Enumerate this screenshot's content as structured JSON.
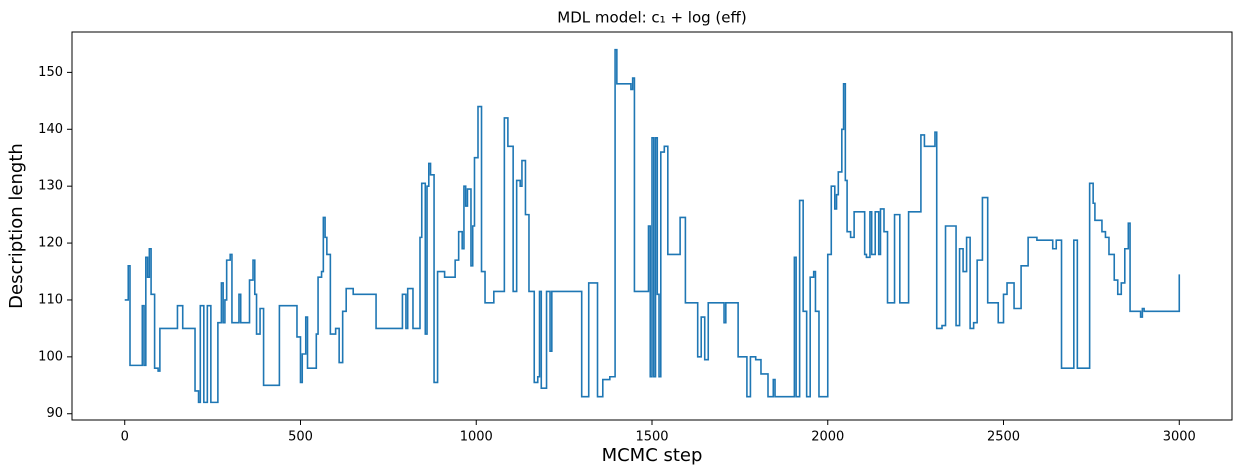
{
  "chart_data": {
    "type": "line",
    "drawstyle": "steps-post",
    "title": "MDL model: c₁ + log (eff)",
    "x_label": "MCMC step",
    "y_label": "Description length",
    "xlim": [
      -150,
      3150
    ],
    "ylim": [
      88.9,
      157.1
    ],
    "xticks": [
      0,
      500,
      1000,
      1500,
      2000,
      2500,
      3000
    ],
    "yticks": [
      90,
      100,
      110,
      120,
      130,
      140,
      150
    ],
    "grid": false,
    "series": [
      {
        "name": "description length",
        "color": "#1f77b4",
        "x": [
          0,
          10,
          15,
          50,
          55,
          60,
          65,
          70,
          75,
          85,
          95,
          100,
          145,
          150,
          165,
          190,
          200,
          210,
          215,
          225,
          235,
          245,
          265,
          275,
          280,
          285,
          290,
          300,
          305,
          325,
          330,
          355,
          365,
          370,
          375,
          385,
          395,
          430,
          440,
          480,
          490,
          500,
          505,
          515,
          520,
          545,
          550,
          560,
          565,
          570,
          575,
          585,
          600,
          610,
          620,
          630,
          650,
          700,
          715,
          785,
          790,
          800,
          805,
          820,
          840,
          845,
          855,
          860,
          865,
          870,
          880,
          890,
          910,
          940,
          950,
          960,
          965,
          970,
          975,
          985,
          990,
          995,
          1005,
          1015,
          1025,
          1050,
          1080,
          1090,
          1105,
          1115,
          1125,
          1130,
          1140,
          1150,
          1165,
          1175,
          1180,
          1185,
          1200,
          1210,
          1215,
          1300,
          1320,
          1345,
          1360,
          1380,
          1395,
          1400,
          1440,
          1445,
          1450,
          1480,
          1490,
          1495,
          1500,
          1505,
          1510,
          1515,
          1520,
          1525,
          1535,
          1545,
          1570,
          1580,
          1595,
          1620,
          1630,
          1640,
          1650,
          1660,
          1700,
          1705,
          1710,
          1745,
          1770,
          1780,
          1795,
          1810,
          1830,
          1845,
          1850,
          1870,
          1905,
          1910,
          1920,
          1930,
          1940,
          1950,
          1960,
          1965,
          1975,
          2000,
          2010,
          2020,
          2025,
          2030,
          2040,
          2045,
          2050,
          2055,
          2065,
          2075,
          2105,
          2110,
          2120,
          2125,
          2135,
          2145,
          2150,
          2160,
          2170,
          2190,
          2205,
          2230,
          2250,
          2265,
          2275,
          2305,
          2310,
          2325,
          2335,
          2365,
          2375,
          2385,
          2395,
          2405,
          2415,
          2425,
          2440,
          2455,
          2485,
          2500,
          2510,
          2530,
          2550,
          2570,
          2595,
          2620,
          2640,
          2650,
          2665,
          2685,
          2700,
          2710,
          2730,
          2745,
          2755,
          2760,
          2780,
          2790,
          2800,
          2815,
          2825,
          2835,
          2845,
          2855,
          2860,
          2880,
          2890,
          2895,
          2900,
          3000
        ],
        "values": [
          110,
          116,
          98.5,
          109,
          98.5,
          117.5,
          114,
          119,
          111,
          98,
          97.5,
          105,
          105,
          109,
          105,
          105,
          94,
          92,
          109,
          92,
          109,
          92,
          106,
          113,
          106,
          110,
          117,
          118,
          106,
          111,
          106,
          113.5,
          117,
          111,
          104,
          108.5,
          95,
          95,
          109,
          109,
          103.5,
          95.5,
          100.5,
          107,
          98,
          104,
          114,
          115,
          124.5,
          121,
          118,
          104,
          105,
          99,
          108,
          112,
          111,
          111,
          105,
          105,
          111,
          105,
          112,
          105,
          121,
          130.5,
          104,
          130,
          134,
          132,
          95.5,
          115,
          114,
          117,
          122,
          119,
          130,
          126.5,
          129.5,
          116,
          123,
          135,
          144,
          115,
          109.5,
          111.5,
          142,
          137,
          111.5,
          131,
          130,
          134.5,
          125,
          111.5,
          95.5,
          96.5,
          111.5,
          94.5,
          111.5,
          101,
          111.5,
          93,
          113,
          93,
          96,
          96.5,
          154,
          148,
          147,
          149,
          111.5,
          111.5,
          123,
          96.5,
          138.5,
          96.5,
          138.5,
          111,
          96.5,
          136,
          137,
          118,
          118,
          124.5,
          109.5,
          109.5,
          100,
          107,
          99.5,
          109.5,
          109.5,
          106,
          109.5,
          100,
          93,
          100,
          99.5,
          97,
          93,
          96,
          93,
          93,
          117.5,
          93,
          127.5,
          108,
          93,
          114,
          115,
          108,
          93,
          118,
          130,
          126,
          128.5,
          132.5,
          140,
          148,
          131,
          122,
          121,
          125.5,
          118,
          117.5,
          125.5,
          118,
          125.5,
          118,
          126,
          122,
          109.5,
          125,
          109.5,
          125.5,
          125.5,
          139,
          137,
          139.5,
          105,
          105.5,
          123,
          105.5,
          119,
          115,
          121,
          105,
          106,
          117,
          128,
          109.5,
          106,
          111,
          113,
          108.5,
          116,
          121,
          120.5,
          120.5,
          119,
          120.5,
          98,
          98,
          120.5,
          98,
          98,
          130.5,
          127,
          124,
          122,
          121,
          118,
          113.5,
          111,
          113,
          119,
          123.5,
          108,
          108,
          107,
          108.5,
          108,
          114.5
        ]
      }
    ]
  }
}
